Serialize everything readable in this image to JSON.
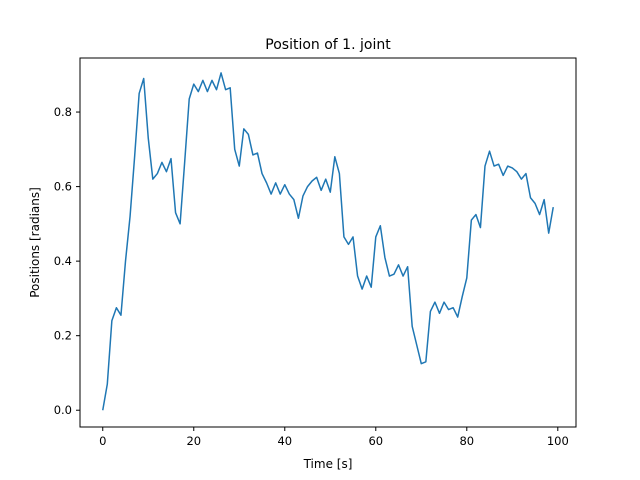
{
  "chart_data": {
    "type": "line",
    "title": "Position of 1. joint",
    "xlabel": "Time [s]",
    "ylabel": "Positions [radians]",
    "xlim": [
      -5,
      104
    ],
    "ylim": [
      -0.045,
      0.945
    ],
    "xticks": [
      0,
      20,
      40,
      60,
      80,
      100
    ],
    "yticks": [
      0.0,
      0.2,
      0.4,
      0.6,
      0.8
    ],
    "xtick_labels": [
      "0",
      "20",
      "40",
      "60",
      "80",
      "100"
    ],
    "ytick_labels": [
      "0.0",
      "0.2",
      "0.4",
      "0.6",
      "0.8"
    ],
    "grid": false,
    "line_color": "#1f77b4",
    "series": [
      {
        "x": [
          0,
          1,
          2,
          3,
          4,
          5,
          6,
          7,
          8,
          9,
          10,
          11,
          12,
          13,
          14,
          15,
          16,
          17,
          18,
          19,
          20,
          21,
          22,
          23,
          24,
          25,
          26,
          27,
          28,
          29,
          30,
          31,
          32,
          33,
          34,
          35,
          36,
          37,
          38,
          39,
          40,
          41,
          42,
          43,
          44,
          45,
          46,
          47,
          48,
          49,
          50,
          51,
          52,
          53,
          54,
          55,
          56,
          57,
          58,
          59,
          60,
          61,
          62,
          63,
          64,
          65,
          66,
          67,
          68,
          69,
          70,
          71,
          72,
          73,
          74,
          75,
          76,
          77,
          78,
          79,
          80,
          81,
          82,
          83,
          84,
          85,
          86,
          87,
          88,
          89,
          90,
          91,
          92,
          93,
          94,
          95,
          96,
          97,
          98,
          99
        ],
        "y": [
          0.0,
          0.07,
          0.24,
          0.275,
          0.255,
          0.4,
          0.52,
          0.68,
          0.85,
          0.89,
          0.73,
          0.62,
          0.635,
          0.665,
          0.64,
          0.675,
          0.53,
          0.5,
          0.665,
          0.835,
          0.875,
          0.855,
          0.885,
          0.855,
          0.885,
          0.86,
          0.905,
          0.86,
          0.865,
          0.7,
          0.655,
          0.755,
          0.74,
          0.685,
          0.69,
          0.635,
          0.61,
          0.58,
          0.61,
          0.58,
          0.605,
          0.58,
          0.565,
          0.515,
          0.575,
          0.6,
          0.615,
          0.625,
          0.59,
          0.62,
          0.585,
          0.68,
          0.635,
          0.465,
          0.445,
          0.465,
          0.36,
          0.325,
          0.36,
          0.33,
          0.465,
          0.495,
          0.41,
          0.36,
          0.365,
          0.39,
          0.36,
          0.385,
          0.225,
          0.175,
          0.125,
          0.13,
          0.265,
          0.29,
          0.26,
          0.29,
          0.27,
          0.275,
          0.25,
          0.305,
          0.355,
          0.51,
          0.525,
          0.49,
          0.655,
          0.695,
          0.655,
          0.66,
          0.63,
          0.655,
          0.65,
          0.64,
          0.62,
          0.635,
          0.57,
          0.555,
          0.525,
          0.565,
          0.475,
          0.545
        ]
      }
    ]
  }
}
